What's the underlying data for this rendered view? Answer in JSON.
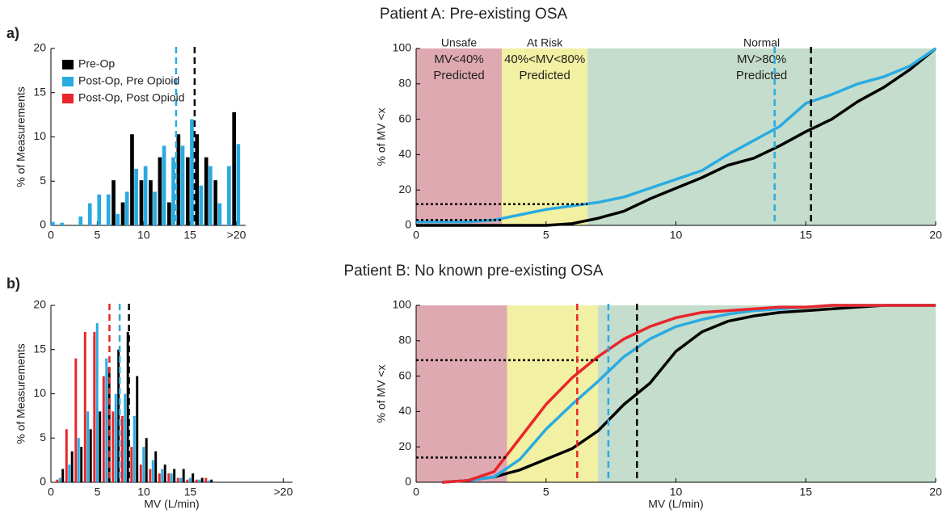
{
  "panels": [
    {
      "label": "a)",
      "title": "Patient A: Pre-existing OSA"
    },
    {
      "label": "b)",
      "title": "Patient B: No known pre-existing OSA"
    }
  ],
  "chart_data": [
    {
      "type": "bar",
      "ylabel": "% of Measurements",
      "xlim": [
        0,
        21
      ],
      "ylim": [
        0,
        20
      ],
      "xticks": [
        0,
        5,
        10,
        15,
        {
          "value": 20,
          "label": ">20"
        }
      ],
      "yticks": [
        0,
        5,
        10,
        15,
        20
      ],
      "legend": "upper left",
      "x": [
        0,
        1,
        2,
        3,
        4,
        5,
        6,
        7,
        8,
        9,
        10,
        11,
        12,
        13,
        14,
        15,
        16,
        17,
        18,
        19,
        20
      ],
      "series": [
        {
          "name": "Pre-Op",
          "color": "#000000",
          "values": [
            0,
            0,
            0,
            0,
            0,
            0,
            0,
            5.1,
            2.6,
            10.3,
            5.1,
            5.1,
            7.7,
            2.6,
            10.3,
            7.7,
            10.3,
            7.7,
            5.1,
            0,
            12.8
          ]
        },
        {
          "name": "Post-Op, Pre Opioid",
          "color": "#29abe2",
          "values": [
            0.4,
            0.3,
            0,
            1,
            2.5,
            3.5,
            3.5,
            1.3,
            3.8,
            6.4,
            6.7,
            3.8,
            9,
            7.7,
            9,
            12,
            4.5,
            6.7,
            2.5,
            6.7,
            9.2
          ]
        },
        {
          "name": "Post-Op, Post Opioid",
          "color": "#e8262b",
          "values": [
            0,
            0,
            0,
            0,
            0,
            0,
            0,
            0,
            0,
            0,
            0,
            0,
            0,
            0,
            0,
            0,
            0,
            0,
            0,
            0,
            0
          ]
        }
      ],
      "vlines": [
        {
          "x": 13.5,
          "color": "#29abe2"
        },
        {
          "x": 15.5,
          "color": "#000000"
        }
      ]
    },
    {
      "type": "line",
      "ylabel": "% of MV <x",
      "xlim": [
        0,
        20
      ],
      "ylim": [
        0,
        100
      ],
      "xticks": [
        0,
        5,
        10,
        15,
        20
      ],
      "yticks": [
        0,
        20,
        40,
        60,
        80,
        100
      ],
      "regions": [
        {
          "x0": 0,
          "x1": 3.3,
          "color": "#dfa9b2",
          "lines": [
            "Unsafe",
            "MV<40%",
            "Predicted"
          ]
        },
        {
          "x0": 3.3,
          "x1": 6.6,
          "color": "#f2f0a2",
          "lines": [
            "At Risk",
            "40%<MV<80%",
            "Predicted"
          ]
        },
        {
          "x0": 6.6,
          "x1": 20,
          "color": "#c5ddcc",
          "lines": [
            "Normal",
            "MV>80%",
            "Predicted"
          ]
        }
      ],
      "x": [
        0,
        1,
        2,
        3,
        4,
        5,
        6,
        7,
        8,
        9,
        10,
        11,
        12,
        13,
        14,
        15,
        16,
        17,
        18,
        19,
        20
      ],
      "series": [
        {
          "color": "#000000",
          "values": [
            0,
            0,
            0,
            0,
            0,
            0,
            1,
            4,
            8,
            15,
            21,
            27,
            34,
            38,
            45,
            53,
            60,
            70,
            78,
            88,
            100
          ]
        },
        {
          "color": "#29abe2",
          "values": [
            2,
            2,
            2,
            3,
            6,
            9,
            11,
            13,
            16,
            21,
            26,
            31,
            40,
            48,
            56,
            69,
            74,
            80,
            84,
            90,
            100
          ]
        }
      ],
      "hlines": [
        {
          "y": 12,
          "x1": 6.6
        },
        {
          "y": 3,
          "x1": 3.3
        }
      ],
      "vlines": [
        {
          "x": 13.8,
          "color": "#29abe2"
        },
        {
          "x": 15.2,
          "color": "#000000"
        }
      ]
    },
    {
      "type": "bar",
      "ylabel": "% of Measurements",
      "xlabel": "MV (L/min)",
      "xlim": [
        0,
        26
      ],
      "ylim": [
        0,
        20
      ],
      "xticks": [
        0,
        5,
        10,
        15,
        {
          "value": 25,
          "label": ">20"
        }
      ],
      "yticks": [
        0,
        5,
        10,
        15,
        20
      ],
      "x": [
        1,
        2,
        3,
        4,
        5,
        6,
        7,
        8,
        9,
        10,
        11,
        12,
        13,
        14,
        15,
        16,
        17
      ],
      "series": [
        {
          "color": "#e8262b",
          "values": [
            0.3,
            6,
            14,
            17,
            17,
            12,
            8,
            7.5,
            4,
            2,
            1.5,
            1,
            1,
            0.5,
            0.3,
            0.3,
            0.5
          ]
        },
        {
          "color": "#29abe2",
          "values": [
            0.5,
            2,
            5,
            8,
            18,
            14,
            10,
            10,
            7.5,
            4,
            2.5,
            1.5,
            1,
            0.5,
            0.5,
            0.3,
            0.2
          ]
        },
        {
          "color": "#000000",
          "values": [
            1.5,
            3.5,
            4,
            6,
            8,
            13,
            15,
            17,
            12,
            5,
            3.5,
            2,
            1.5,
            1.5,
            1,
            0.5,
            0.3
          ]
        }
      ],
      "vlines": [
        {
          "x": 6.3,
          "color": "#e8262b"
        },
        {
          "x": 7.4,
          "color": "#29abe2"
        },
        {
          "x": 8.4,
          "color": "#000000"
        }
      ]
    },
    {
      "type": "line",
      "ylabel": "% of MV <x",
      "xlabel": "MV (L/min)",
      "xlim": [
        0,
        20
      ],
      "ylim": [
        0,
        100
      ],
      "xticks": [
        0,
        5,
        10,
        15,
        20
      ],
      "yticks": [
        0,
        20,
        40,
        60,
        80,
        100
      ],
      "regions": [
        {
          "x0": 0,
          "x1": 3.5,
          "color": "#dfa9b2"
        },
        {
          "x0": 3.5,
          "x1": 7,
          "color": "#f2f0a2"
        },
        {
          "x0": 7,
          "x1": 20,
          "color": "#c5ddcc"
        }
      ],
      "x": [
        0,
        1,
        2,
        3,
        4,
        5,
        6,
        7,
        8,
        9,
        10,
        11,
        12,
        13,
        14,
        15,
        16,
        17,
        18,
        19,
        20
      ],
      "series": [
        {
          "color": "#000000",
          "values": [
            null,
            0,
            1,
            3,
            7,
            13,
            19,
            29,
            44,
            56,
            74,
            85,
            91,
            94,
            96,
            97,
            98,
            99,
            100,
            100,
            100
          ]
        },
        {
          "color": "#29abe2",
          "values": [
            null,
            0,
            1,
            3,
            13,
            30,
            44,
            57,
            71,
            81,
            88,
            92,
            95,
            97,
            98,
            99,
            100,
            100,
            100,
            100,
            100
          ]
        },
        {
          "color": "#e8262b",
          "values": [
            null,
            0,
            1,
            6,
            25,
            44,
            59,
            71,
            81,
            88,
            93,
            96,
            97,
            98,
            99,
            99,
            100,
            100,
            100,
            100,
            100
          ]
        }
      ],
      "hlines": [
        {
          "y": 69,
          "x1": 7
        },
        {
          "y": 14,
          "x1": 3.5
        }
      ],
      "vlines": [
        {
          "x": 6.2,
          "color": "#e8262b"
        },
        {
          "x": 7.4,
          "color": "#29abe2"
        },
        {
          "x": 8.5,
          "color": "#000000"
        }
      ]
    }
  ]
}
